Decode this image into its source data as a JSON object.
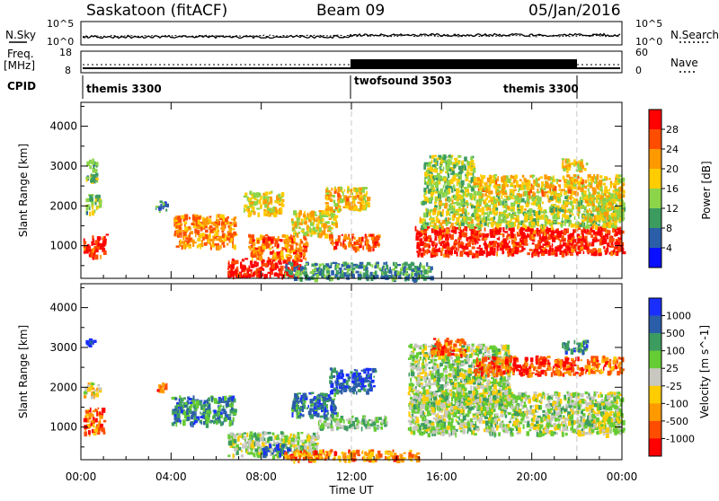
{
  "header": {
    "station": "Saskatoon (fitACF)",
    "beam": "Beam 09",
    "date": "05/Jan/2016"
  },
  "status_panels": {
    "nsky_label": "N.Sky",
    "nsearch_label": "N.Search",
    "nsky_ticks": [
      "10^5",
      "10^0"
    ],
    "nsearch_ticks": [
      "10^5",
      "10^0"
    ],
    "freq_label_top": "Freq.",
    "freq_label_bottom": "[MHz]",
    "freq_ticks": [
      "18",
      "8"
    ],
    "nave_label": "Nave",
    "nave_ticks": [
      "60",
      "0"
    ],
    "cpid_label": "CPID",
    "cpid_segments": [
      {
        "label": "themis 3300",
        "start_hour": 0,
        "end_hour": 12
      },
      {
        "label": "twofsound 3503",
        "start_hour": 12,
        "end_hour": 22
      },
      {
        "label": "themis 3300",
        "start_hour": 22,
        "end_hour": 24
      }
    ]
  },
  "chart_data": [
    {
      "type": "heatmap",
      "name": "power",
      "ylabel": "Slant Range [km]",
      "ylim": [
        180,
        4600
      ],
      "xlim": [
        0,
        24
      ],
      "yticks": [
        "1000",
        "2000",
        "3000",
        "4000"
      ],
      "colorbar_label": "Power [dB]",
      "colorbar_ticks": [
        "28",
        "24",
        "20",
        "16",
        "12",
        "8",
        "4"
      ],
      "colorbar_colors": [
        "#ff0000",
        "#ff4d00",
        "#ff9900",
        "#ffcc00",
        "#8cd44a",
        "#3c9c60",
        "#2b5ea8",
        "#0a10ff"
      ],
      "echo_regions": [
        {
          "x0": 0.1,
          "x1": 1.1,
          "y0": 750,
          "y1": 1300,
          "level": 0.9
        },
        {
          "x0": 0.2,
          "x1": 0.8,
          "y0": 1850,
          "y1": 2300,
          "level": 0.4
        },
        {
          "x0": 0.2,
          "x1": 0.7,
          "y0": 2600,
          "y1": 3200,
          "level": 0.35
        },
        {
          "x0": 3.3,
          "x1": 3.8,
          "y0": 1900,
          "y1": 2150,
          "level": 0.25
        },
        {
          "x0": 4.1,
          "x1": 6.8,
          "y0": 1000,
          "y1": 1800,
          "level": 0.7
        },
        {
          "x0": 6.5,
          "x1": 9.8,
          "y0": 250,
          "y1": 700,
          "level": 0.95
        },
        {
          "x0": 7.4,
          "x1": 10.0,
          "y0": 700,
          "y1": 1300,
          "level": 0.75
        },
        {
          "x0": 7.2,
          "x1": 8.9,
          "y0": 1800,
          "y1": 2400,
          "level": 0.55
        },
        {
          "x0": 9.3,
          "x1": 11.3,
          "y0": 1300,
          "y1": 1900,
          "level": 0.55
        },
        {
          "x0": 10.8,
          "x1": 12.7,
          "y0": 1900,
          "y1": 2500,
          "level": 0.6
        },
        {
          "x0": 11.0,
          "x1": 13.2,
          "y0": 950,
          "y1": 1300,
          "level": 0.8
        },
        {
          "x0": 9.0,
          "x1": 15.5,
          "y0": 200,
          "y1": 600,
          "level": 0.3
        },
        {
          "x0": 14.8,
          "x1": 24.0,
          "y0": 800,
          "y1": 1500,
          "level": 0.9
        },
        {
          "x0": 15.0,
          "x1": 24.0,
          "y0": 1500,
          "y1": 2300,
          "level": 0.5
        },
        {
          "x0": 15.2,
          "x1": 17.4,
          "y0": 2300,
          "y1": 3300,
          "level": 0.45
        },
        {
          "x0": 17.4,
          "x1": 22.2,
          "y0": 2300,
          "y1": 2800,
          "level": 0.6
        },
        {
          "x0": 21.3,
          "x1": 22.4,
          "y0": 2900,
          "y1": 3200,
          "level": 0.55
        },
        {
          "x0": 22.3,
          "x1": 24.0,
          "y0": 1700,
          "y1": 2800,
          "level": 0.55
        }
      ]
    },
    {
      "type": "heatmap",
      "name": "velocity",
      "ylabel": "Slant Range [km]",
      "xlabel": "Time UT",
      "ylim": [
        180,
        4600
      ],
      "xlim": [
        0,
        24
      ],
      "yticks": [
        "1000",
        "2000",
        "3000",
        "4000"
      ],
      "xticks": [
        "00:00",
        "04:00",
        "08:00",
        "12:00",
        "16:00",
        "20:00",
        "00:00"
      ],
      "colorbar_label": "Velocity [m s^-1]",
      "colorbar_ticks": [
        "1000",
        "500",
        "100",
        "25",
        "-25",
        "-100",
        "-500",
        "-1000"
      ],
      "colorbar_colors": [
        "#1a2fff",
        "#2b5ea8",
        "#3c9c60",
        "#66cc33",
        "#c8c8c0",
        "#ffcc00",
        "#ff9900",
        "#ff4d00",
        "#ff0000"
      ],
      "echo_regions": [
        {
          "x0": 0.1,
          "x1": 1.0,
          "y0": 850,
          "y1": 1500,
          "level": 0.2
        },
        {
          "x0": 0.1,
          "x1": 0.8,
          "y0": 1800,
          "y1": 2150,
          "level": 0.45
        },
        {
          "x0": 0.2,
          "x1": 0.6,
          "y0": 3050,
          "y1": 3250,
          "level": 0.9
        },
        {
          "x0": 3.3,
          "x1": 3.8,
          "y0": 1950,
          "y1": 2150,
          "level": 0.2
        },
        {
          "x0": 4.0,
          "x1": 6.8,
          "y0": 1100,
          "y1": 1800,
          "level": 0.75
        },
        {
          "x0": 6.5,
          "x1": 10.5,
          "y0": 300,
          "y1": 900,
          "level": 0.55
        },
        {
          "x0": 8.0,
          "x1": 9.2,
          "y0": 350,
          "y1": 600,
          "level": 0.85
        },
        {
          "x0": 9.3,
          "x1": 11.3,
          "y0": 1300,
          "y1": 1900,
          "level": 0.8
        },
        {
          "x0": 11.0,
          "x1": 13.0,
          "y0": 1900,
          "y1": 2500,
          "level": 0.85
        },
        {
          "x0": 10.5,
          "x1": 13.5,
          "y0": 1000,
          "y1": 1300,
          "level": 0.6
        },
        {
          "x0": 9.0,
          "x1": 15.0,
          "y0": 200,
          "y1": 450,
          "level": 0.25
        },
        {
          "x0": 14.5,
          "x1": 24.0,
          "y0": 850,
          "y1": 1900,
          "level": 0.55
        },
        {
          "x0": 14.5,
          "x1": 19.0,
          "y0": 1500,
          "y1": 3100,
          "level": 0.55
        },
        {
          "x0": 15.5,
          "x1": 17.0,
          "y0": 2800,
          "y1": 3250,
          "level": 0.2
        },
        {
          "x0": 17.4,
          "x1": 22.2,
          "y0": 2350,
          "y1": 2800,
          "level": 0.15
        },
        {
          "x0": 21.3,
          "x1": 22.4,
          "y0": 2900,
          "y1": 3200,
          "level": 0.8
        },
        {
          "x0": 22.3,
          "x1": 24.0,
          "y0": 2400,
          "y1": 2800,
          "level": 0.25
        },
        {
          "x0": 22.5,
          "x1": 24.0,
          "y0": 900,
          "y1": 1400,
          "level": 0.5
        }
      ]
    }
  ]
}
